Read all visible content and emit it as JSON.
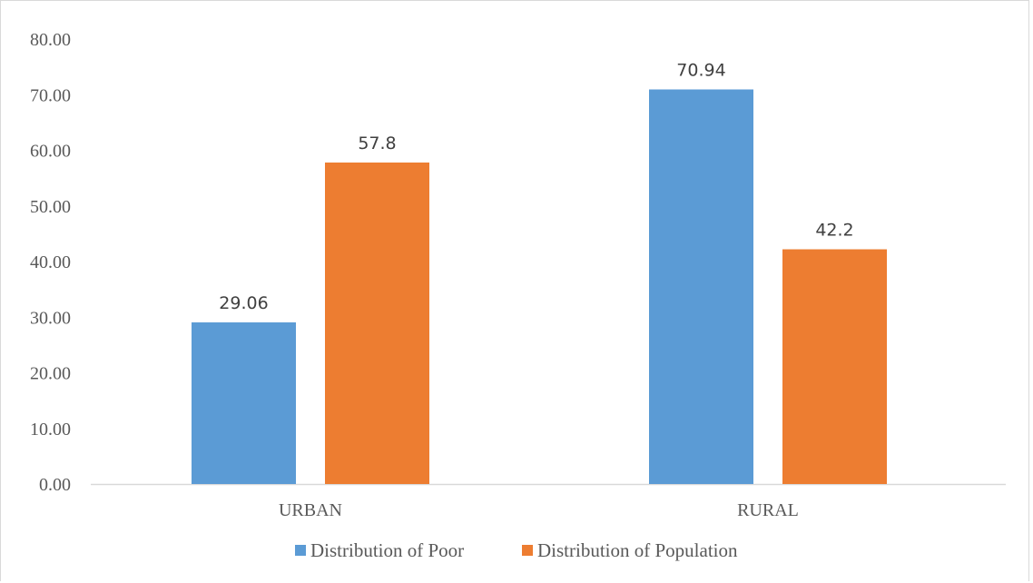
{
  "chart_data": {
    "type": "bar",
    "categories": [
      "URBAN",
      "RURAL"
    ],
    "series": [
      {
        "name": "Distribution of Poor",
        "values": [
          29.06,
          70.94
        ],
        "labels": [
          "29.06",
          "70.94"
        ],
        "color": "#5b9bd5"
      },
      {
        "name": "Distribution of Population",
        "values": [
          57.8,
          42.2
        ],
        "labels": [
          "57.8",
          "42.2"
        ],
        "color": "#ed7d31"
      }
    ],
    "y_ticks": [
      "0.00",
      "10.00",
      "20.00",
      "30.00",
      "40.00",
      "50.00",
      "60.00",
      "70.00",
      "80.00"
    ],
    "ylim": [
      0,
      80
    ],
    "title": "",
    "xlabel": "",
    "ylabel": "",
    "grid": false,
    "legend_position": "bottom"
  }
}
